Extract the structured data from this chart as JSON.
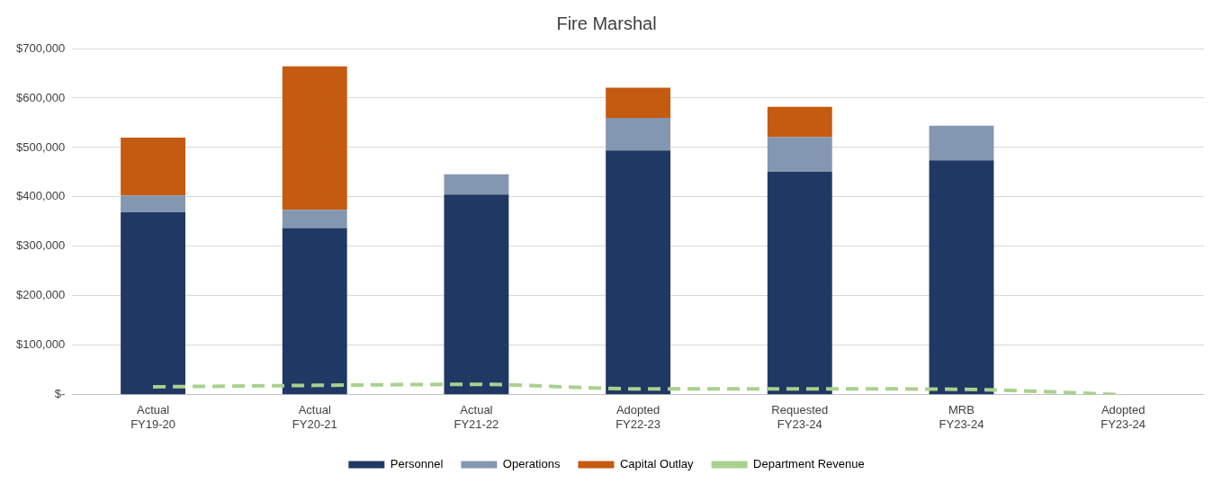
{
  "chart_data": {
    "type": "bar",
    "title": "Fire Marshal",
    "stacked": true,
    "categories": [
      "Actual\nFY19-20",
      "Actual\nFY20-21",
      "Actual\nFY21-22",
      "Adopted\nFY22-23",
      "Requested\nFY23-24",
      "MRB\nFY23-24",
      "Adopted\nFY23-24"
    ],
    "series": [
      {
        "name": "Personnel",
        "color": "#203864",
        "values": [
          369000,
          337000,
          405000,
          494000,
          451000,
          474000,
          null
        ]
      },
      {
        "name": "Operations",
        "color": "#8497b0",
        "values": [
          34000,
          37000,
          41000,
          66000,
          70000,
          70000,
          null
        ]
      },
      {
        "name": "Capital Outlay",
        "color": "#c55a11",
        "values": [
          117000,
          290000,
          null,
          61000,
          61000,
          null,
          null
        ]
      },
      {
        "name": "Department Revenue",
        "type": "line",
        "color": "#a9d18e",
        "line_style": "dashed",
        "marker": "none",
        "values": [
          16000,
          19000,
          21000,
          12000,
          12000,
          11000,
          0
        ]
      }
    ],
    "ylim": [
      0,
      700000
    ],
    "yticks": [
      {
        "value": 0,
        "label": "$-"
      },
      {
        "value": 100000,
        "label": "$100,000"
      },
      {
        "value": 200000,
        "label": "$200,000"
      },
      {
        "value": 300000,
        "label": "$300,000"
      },
      {
        "value": 400000,
        "label": "$400,000"
      },
      {
        "value": 500000,
        "label": "$500,000"
      },
      {
        "value": 600000,
        "label": "$600,000"
      },
      {
        "value": 700000,
        "label": "$700,000"
      }
    ],
    "grid": "y",
    "legend": "bottom"
  }
}
